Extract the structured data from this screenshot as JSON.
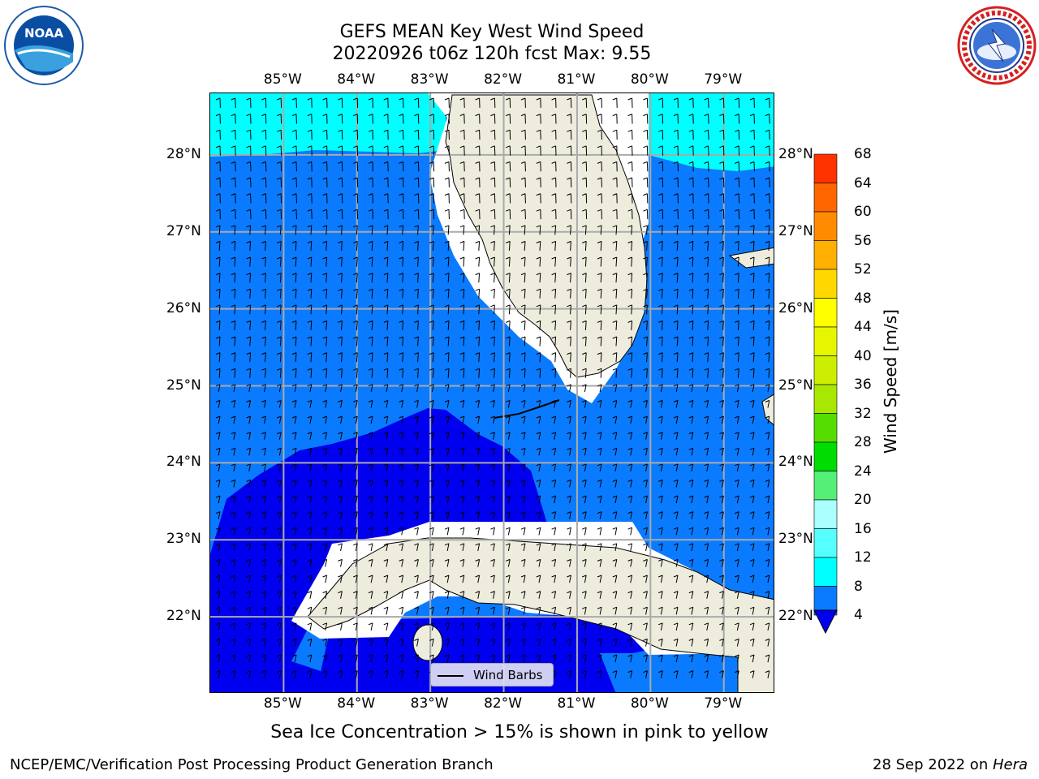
{
  "header": {
    "title_line1": "GEFS MEAN Key West Wind Speed",
    "title_line2": "20220926 t06z 120h fcst   Max: 9.55"
  },
  "logos": {
    "left": {
      "icon": "noaa-logo",
      "text": "NOAA"
    },
    "right": {
      "icon": "national-weather-service-logo"
    }
  },
  "map": {
    "lon_labels": [
      "85°W",
      "84°W",
      "83°W",
      "82°W",
      "81°W",
      "80°W",
      "79°W"
    ],
    "lat_labels": [
      "28°N",
      "27°N",
      "26°N",
      "25°N",
      "24°N",
      "23°N",
      "22°N"
    ],
    "lon_values": [
      -85,
      -84,
      -83,
      -82,
      -81,
      -80,
      -79
    ],
    "lat_values": [
      28,
      27,
      26,
      25,
      24,
      23,
      22
    ],
    "extent": {
      "lon_min": -86,
      "lon_max": -78.3,
      "lat_min": 21,
      "lat_max": 28.8
    },
    "legend_label": "Wind Barbs",
    "colors": {
      "land": "#eeecdc",
      "ocean_4_8": "#0a7bff",
      "ocean_lt4": "#0000ee",
      "ocean_8_12": "#00ffff",
      "grid": "#aaaaaa"
    }
  },
  "colorbar": {
    "label": "Wind Speed [m/s]",
    "ticks": [
      "68",
      "64",
      "60",
      "56",
      "52",
      "48",
      "44",
      "40",
      "36",
      "32",
      "28",
      "24",
      "20",
      "16",
      "12",
      "8",
      "4"
    ],
    "colors": [
      "#ff0000",
      "#ff3300",
      "#ff6600",
      "#ff8c00",
      "#ffb000",
      "#ffd800",
      "#ffff00",
      "#e6f500",
      "#ccee00",
      "#a8e800",
      "#55dd00",
      "#00dd00",
      "#55ee77",
      "#aaffff",
      "#55ffff",
      "#00ffff",
      "#0a7bff"
    ],
    "extend_color": "#0000ee"
  },
  "caption": "Sea Ice Concentration > 15% is shown in pink to yellow",
  "footer": {
    "left": "NCEP/EMC/Verification Post Processing Product Generation Branch",
    "right_prefix": "28 Sep 2022 on ",
    "right_host": "Hera"
  }
}
